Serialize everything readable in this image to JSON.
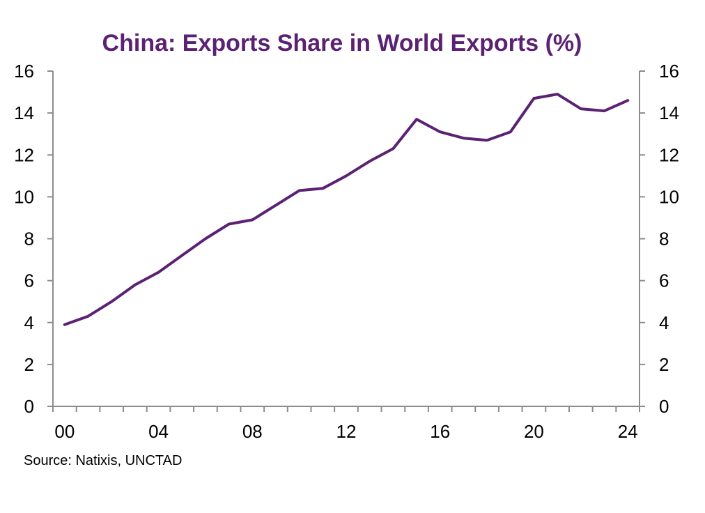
{
  "chart_data": {
    "type": "line",
    "title": "China: Exports Share in World Exports (%)",
    "xlabel": "",
    "ylabel": "",
    "ylim": [
      0,
      16
    ],
    "yticks": [
      "0",
      "2",
      "4",
      "6",
      "8",
      "10",
      "12",
      "14",
      "16"
    ],
    "xlim": [
      2000,
      2024
    ],
    "xticks": [
      {
        "label": "00",
        "x": 2000
      },
      {
        "label": "04",
        "x": 2004
      },
      {
        "label": "08",
        "x": 2008
      },
      {
        "label": "12",
        "x": 2012
      },
      {
        "label": "16",
        "x": 2016
      },
      {
        "label": "20",
        "x": 2020
      },
      {
        "label": "24",
        "x": 2024
      }
    ],
    "grid": false,
    "legend": "none",
    "secondary_y_axis": true,
    "series": [
      {
        "x": [
          2000.5,
          2001.5,
          2002.5,
          2003.5,
          2004.5,
          2005.5,
          2006.5,
          2007.5,
          2008.5,
          2009.5,
          2010.5,
          2011.5,
          2012.5,
          2013.5,
          2014.5,
          2015.5,
          2016.5,
          2017.5,
          2018.5,
          2019.5,
          2020.5,
          2021.5,
          2022.5,
          2023.5,
          2024.5
        ],
        "values": [
          3.9,
          4.3,
          5.0,
          5.8,
          6.4,
          7.2,
          8.0,
          8.7,
          8.9,
          9.6,
          10.3,
          10.4,
          11.0,
          11.7,
          12.3,
          13.7,
          13.1,
          12.8,
          12.7,
          13.1,
          14.7,
          14.9,
          14.2,
          14.1,
          14.6
        ]
      }
    ],
    "source": "Source: Natixis, UNCTAD",
    "colors": {
      "title": "#5b2173",
      "line": "#5b2173",
      "axis": "#8c8c8c"
    }
  }
}
